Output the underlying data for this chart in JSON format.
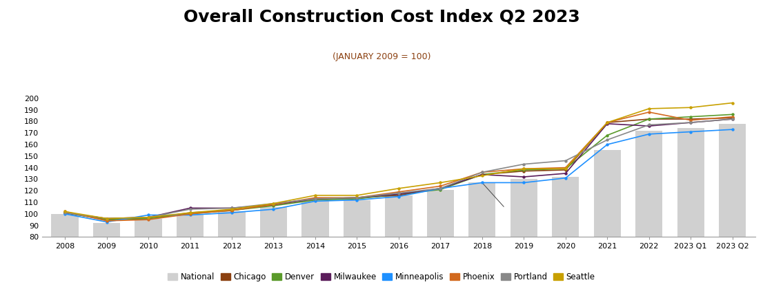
{
  "title": "Overall Construction Cost Index Q2 2023",
  "subtitle": "(JANUARY 2009 = 100)",
  "categories": [
    "2008",
    "2009",
    "2010",
    "2011",
    "2012",
    "2013",
    "2014",
    "2015",
    "2016",
    "2017",
    "2018",
    "2019",
    "2020",
    "2021",
    "2022",
    "2023 Q1",
    "2023 Q2"
  ],
  "national_bars": [
    100,
    92,
    96,
    100,
    102,
    106,
    111,
    112,
    116,
    121,
    127,
    130,
    132,
    155,
    172,
    174,
    178
  ],
  "series": {
    "Chicago": [
      101,
      95,
      96,
      101,
      103,
      108,
      113,
      114,
      116,
      122,
      134,
      137,
      138,
      179,
      182,
      182,
      183
    ],
    "Denver": [
      101,
      95,
      96,
      100,
      103,
      107,
      112,
      113,
      117,
      121,
      134,
      138,
      139,
      168,
      182,
      184,
      186
    ],
    "Milwaukee": [
      101,
      96,
      97,
      105,
      105,
      108,
      113,
      114,
      117,
      122,
      134,
      132,
      135,
      178,
      176,
      179,
      182
    ],
    "Minneapolis": [
      100,
      93,
      99,
      99,
      101,
      104,
      111,
      112,
      115,
      122,
      127,
      127,
      131,
      160,
      169,
      171,
      173
    ],
    "Phoenix": [
      102,
      94,
      95,
      100,
      103,
      108,
      114,
      114,
      119,
      124,
      136,
      139,
      140,
      179,
      188,
      181,
      184
    ],
    "Portland": [
      101,
      96,
      97,
      104,
      105,
      109,
      113,
      114,
      118,
      122,
      136,
      143,
      146,
      164,
      177,
      179,
      182
    ],
    "Seattle": [
      102,
      96,
      97,
      101,
      104,
      109,
      116,
      116,
      122,
      127,
      133,
      139,
      139,
      179,
      191,
      192,
      196
    ]
  },
  "series_colors": {
    "Chicago": "#8B4010",
    "Denver": "#5a9a2a",
    "Milwaukee": "#5B1D5B",
    "Minneapolis": "#1E90FF",
    "Phoenix": "#D2691E",
    "Portland": "#888888",
    "Seattle": "#C8A000"
  },
  "bar_color": "#D0D0D0",
  "ylim": [
    80,
    200
  ],
  "yticks": [
    80,
    90,
    100,
    110,
    120,
    130,
    140,
    150,
    160,
    170,
    180,
    190,
    200
  ],
  "background_color": "#ffffff",
  "title_fontsize": 18,
  "subtitle_fontsize": 9,
  "subtitle_color": "#8B4010"
}
